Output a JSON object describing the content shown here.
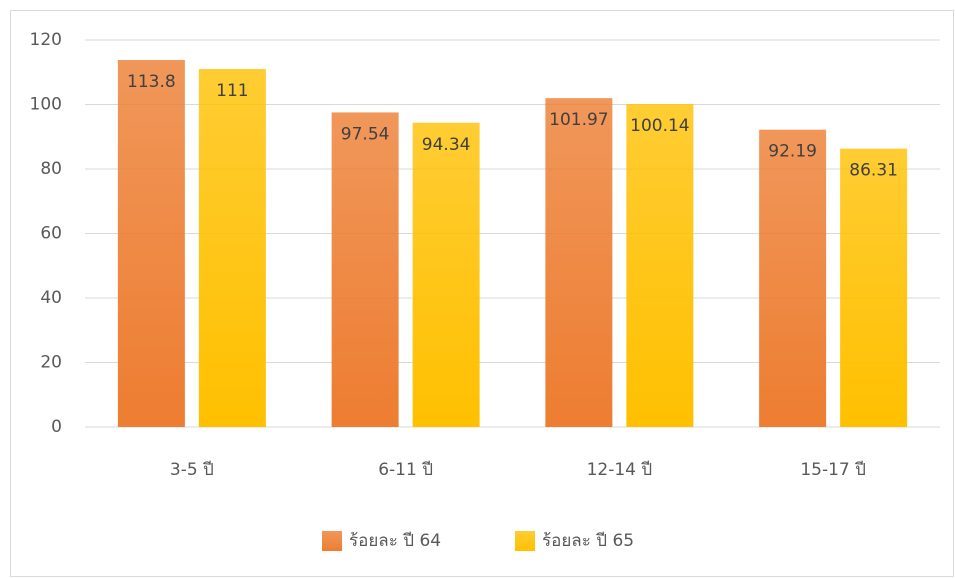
{
  "chart_data": {
    "type": "bar",
    "categories": [
      "3-5 ปี",
      "6-11 ปี",
      "12-14 ปี",
      "15-17 ปี"
    ],
    "series": [
      {
        "name": "ร้อยละ ปี 64",
        "color": "#ed7d31",
        "values": [
          113.8,
          97.54,
          101.97,
          92.19
        ]
      },
      {
        "name": "ร้อยละ ปี 65",
        "color": "#ffc000",
        "values": [
          111,
          94.34,
          100.14,
          86.31
        ]
      }
    ],
    "ylim": [
      0,
      120
    ],
    "yticks": [
      0,
      20,
      40,
      60,
      80,
      100,
      120
    ],
    "grid": true,
    "legend": "bottom"
  }
}
